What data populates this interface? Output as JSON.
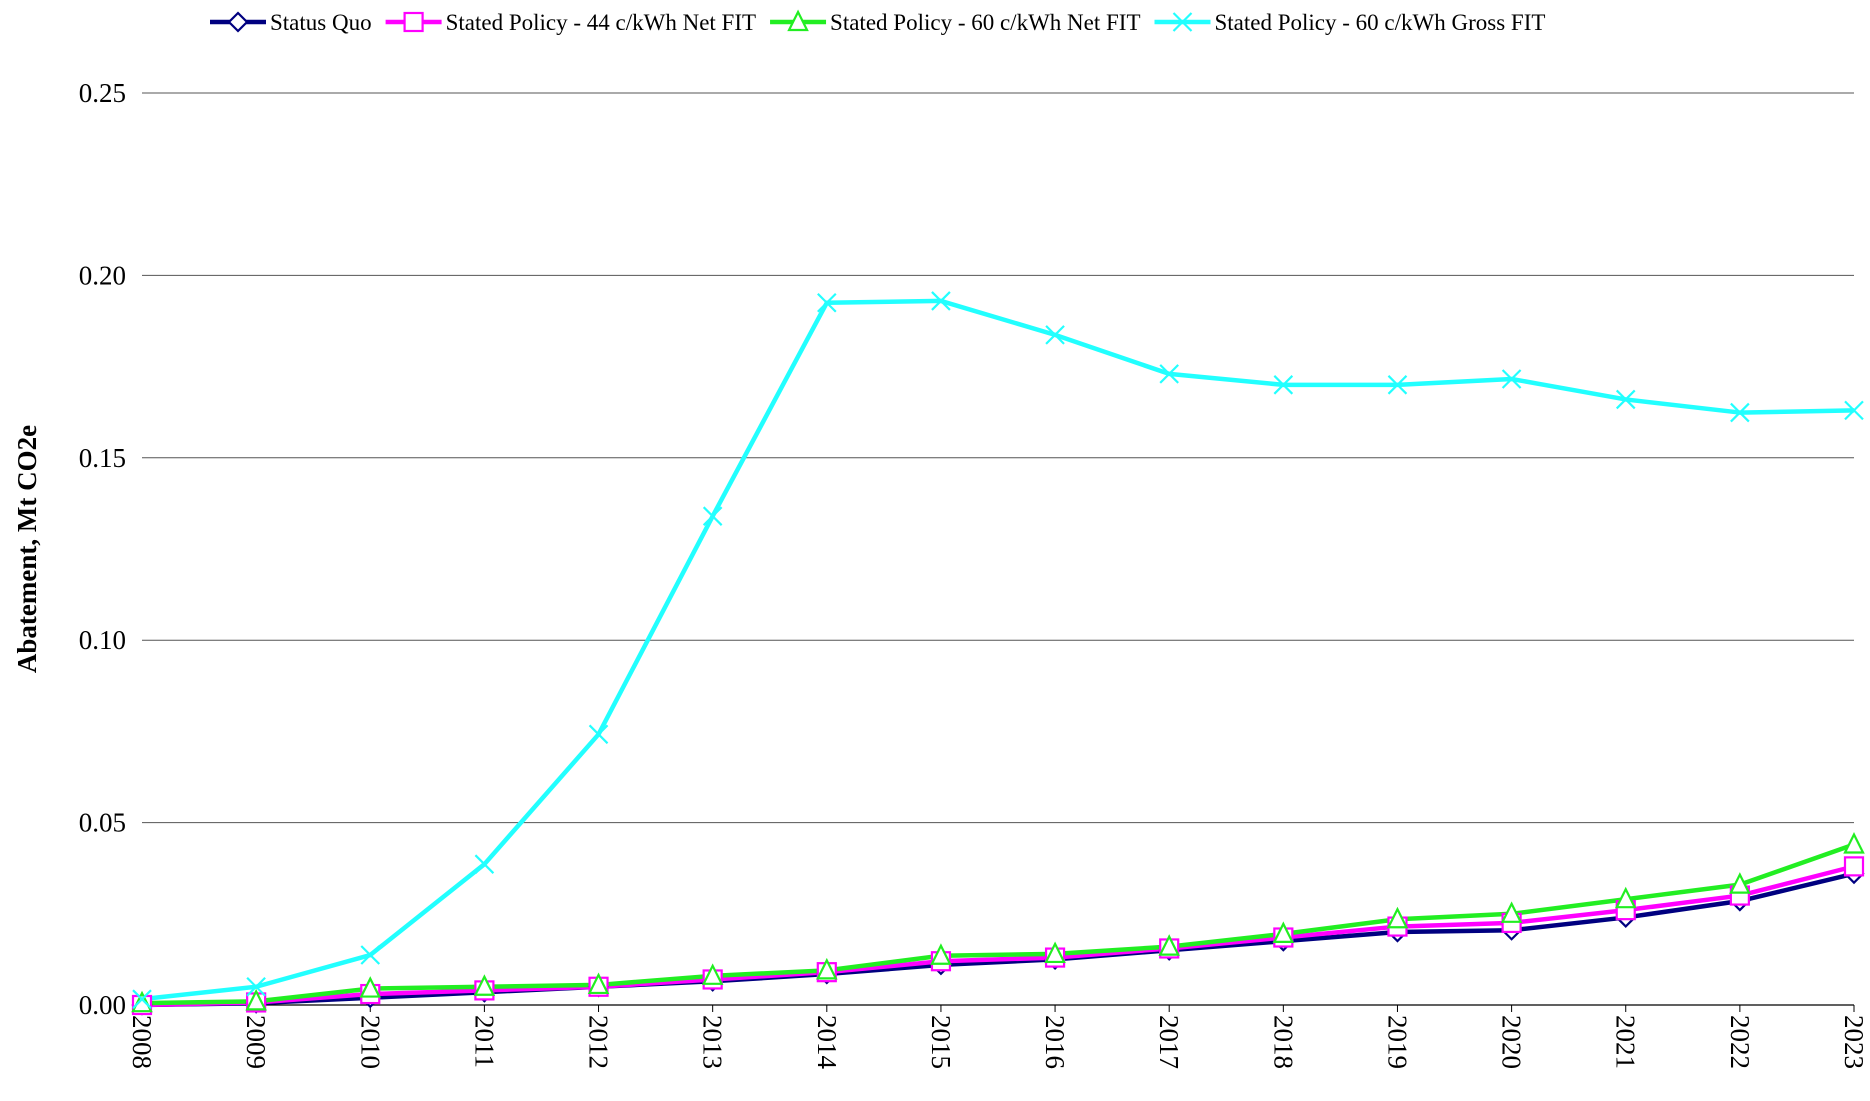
{
  "chart_data": {
    "type": "line",
    "y_label": "Abatement, Mt CO2e",
    "categories": [
      "2008",
      "2009",
      "2010",
      "2011",
      "2012",
      "2013",
      "2014",
      "2015",
      "2016",
      "2017",
      "2018",
      "2019",
      "2020",
      "2021",
      "2022",
      "2023"
    ],
    "series": [
      {
        "name": "Status Quo",
        "color": "#000080",
        "marker": "diamond",
        "values": [
          0,
          0.0005,
          0.002,
          0.0035,
          0.005,
          0.0065,
          0.0085,
          0.011,
          0.0125,
          0.015,
          0.0175,
          0.02,
          0.0205,
          0.024,
          0.0285,
          0.036
        ]
      },
      {
        "name": "Stated Policy - 44 c/kWh Net FIT",
        "color": "#ff00ff",
        "marker": "square",
        "values": [
          0,
          0.0007,
          0.003,
          0.004,
          0.005,
          0.007,
          0.009,
          0.012,
          0.013,
          0.0155,
          0.0185,
          0.0215,
          0.0225,
          0.026,
          0.03,
          0.038
        ]
      },
      {
        "name": "Stated Policy - 60 c/kWh Net FIT",
        "color": "#22ee22",
        "marker": "triangle",
        "values": [
          0.0005,
          0.001,
          0.0045,
          0.005,
          0.0055,
          0.008,
          0.0095,
          0.0135,
          0.014,
          0.016,
          0.0195,
          0.0235,
          0.025,
          0.029,
          0.033,
          0.044
        ]
      },
      {
        "name": "Stated Policy - 60 c/kWh Gross FIT",
        "color": "#22ffff",
        "marker": "x",
        "values": [
          0.0016,
          0.005,
          0.0137,
          0.0386,
          0.0742,
          0.134,
          0.1925,
          0.193,
          0.1837,
          0.173,
          0.17,
          0.17,
          0.1716,
          0.166,
          0.1624,
          0.163
        ]
      }
    ],
    "ylim": [
      0,
      0.25
    ],
    "yticks": [
      {
        "value": 0,
        "label": "0.00"
      },
      0.05,
      {
        "value": 0.1,
        "label": "0.10"
      },
      0.15,
      {
        "value": 0.2,
        "label": "0.20"
      },
      0.25
    ],
    "grid": true,
    "legend": "top"
  }
}
